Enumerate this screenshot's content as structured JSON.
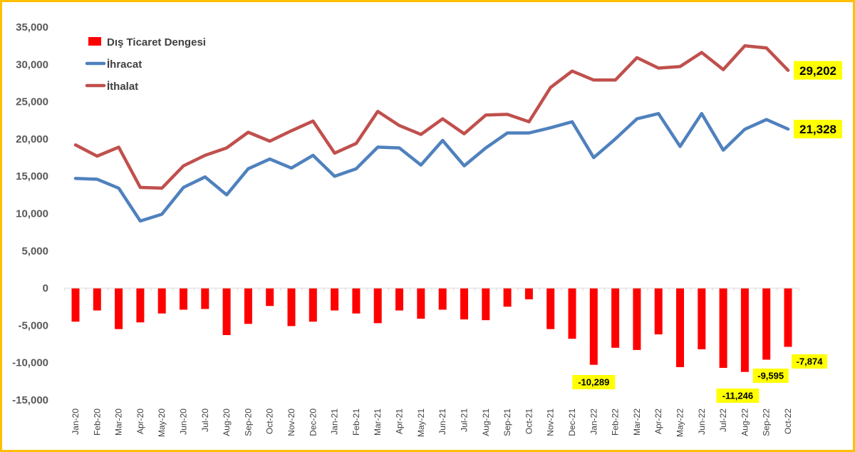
{
  "chart_data": {
    "type": "line",
    "categories": [
      "Jan-20",
      "Feb-20",
      "Mar-20",
      "Apr-20",
      "May-20",
      "Jun-20",
      "Jul-20",
      "Aug-20",
      "Sep-20",
      "Oct-20",
      "Nov-20",
      "Dec-20",
      "Jan-21",
      "Feb-21",
      "Mar-21",
      "Apr-21",
      "May-21",
      "Jun-21",
      "Jul-21",
      "Aug-21",
      "Sep-21",
      "Oct-21",
      "Nov-21",
      "Dec-21",
      "Jan-22",
      "Feb-22",
      "Mar-22",
      "Apr-22",
      "May-22",
      "Jun-22",
      "Jul-22",
      "Aug-22",
      "Sep-22",
      "Oct-22"
    ],
    "series": [
      {
        "name": "Dış Ticaret Dengesi",
        "kind": "bar",
        "color": "#FF0000",
        "values": [
          -4500,
          -3000,
          -5500,
          -4600,
          -3400,
          -2900,
          -2800,
          -6300,
          -4800,
          -2400,
          -5100,
          -4500,
          -3000,
          -3400,
          -4700,
          -3000,
          -4100,
          -2900,
          -4200,
          -4300,
          -2500,
          -1500,
          -5500,
          -6800,
          -10289,
          -8000,
          -8300,
          -6200,
          -10600,
          -8200,
          -10700,
          -11246,
          -9595,
          -7874
        ]
      },
      {
        "name": "İhracat",
        "kind": "line",
        "color": "#4F81BD",
        "values": [
          14700,
          14600,
          13400,
          9000,
          9900,
          13500,
          14900,
          12500,
          16000,
          17300,
          16100,
          17800,
          15000,
          16000,
          18900,
          18800,
          16500,
          19800,
          16400,
          18800,
          20800,
          20800,
          21500,
          22300,
          17500,
          20000,
          22700,
          23400,
          19000,
          23400,
          18500,
          21300,
          22600,
          21328
        ]
      },
      {
        "name": "İthalat",
        "kind": "line",
        "color": "#C0504D",
        "values": [
          19200,
          17700,
          18900,
          13500,
          13400,
          16400,
          17800,
          18800,
          20900,
          19700,
          21100,
          22400,
          18100,
          19400,
          23700,
          21800,
          20600,
          22700,
          20700,
          23200,
          23300,
          22300,
          26900,
          29100,
          27900,
          27900,
          30900,
          29500,
          29700,
          31600,
          29300,
          32500,
          32200,
          29202
        ]
      }
    ],
    "ylim": [
      -15000,
      35000
    ],
    "yticks": [
      "35,000",
      "30,000",
      "25,000",
      "20,000",
      "15,000",
      "10,000",
      "5,000",
      "0",
      "-5,000",
      "-10,000",
      "-15,000"
    ],
    "legend_position": "top-left",
    "grid": false,
    "annotations": [
      {
        "label": "29,202",
        "series": "İthalat",
        "index": 33
      },
      {
        "label": "21,328",
        "series": "İhracat",
        "index": 33
      },
      {
        "label": "-10,289",
        "series": "Dış Ticaret Dengesi",
        "index": 24
      },
      {
        "label": "-11,246",
        "series": "Dış Ticaret Dengesi",
        "index": 31
      },
      {
        "label": "-9,595",
        "series": "Dış Ticaret Dengesi",
        "index": 32
      },
      {
        "label": "-7,874",
        "series": "Dış Ticaret Dengesi",
        "index": 33
      }
    ]
  }
}
